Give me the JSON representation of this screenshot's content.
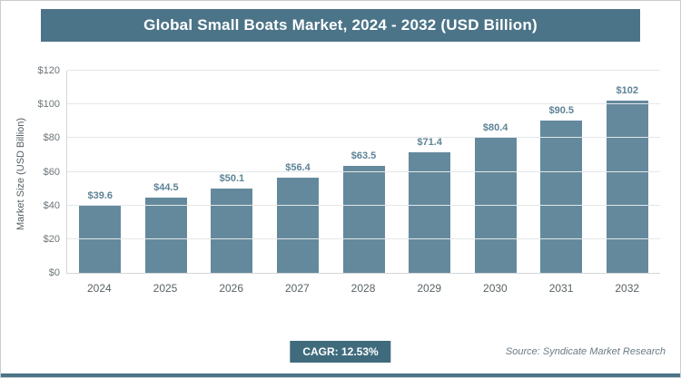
{
  "header": {
    "title": "Global Small Boats Market, 2024 - 2032 (USD Billion)"
  },
  "chart_data": {
    "type": "bar",
    "title": "Global Small Boats Market, 2024 - 2032 (USD Billion)",
    "categories": [
      "2024",
      "2025",
      "2026",
      "2027",
      "2028",
      "2029",
      "2030",
      "2031",
      "2032"
    ],
    "values": [
      39.6,
      44.5,
      50.1,
      56.4,
      63.5,
      71.4,
      80.4,
      90.5,
      102
    ],
    "value_labels": [
      "$39.6",
      "$44.5",
      "$50.1",
      "$56.4",
      "$63.5",
      "$71.4",
      "$80.4",
      "$90.5",
      "$102"
    ],
    "xlabel": "",
    "ylabel": "Market Size (USD Billion)",
    "ylim": [
      0,
      120
    ],
    "yticks": [
      0,
      20,
      40,
      60,
      80,
      100,
      120
    ],
    "ytick_labels": [
      "$0",
      "$20",
      "$40",
      "$60",
      "$80",
      "$100",
      "$120"
    ],
    "grid": true,
    "legend": false,
    "bar_color": "#64899c"
  },
  "footer": {
    "cagr_label": "CAGR: 12.53%",
    "source": "Source: Syndicate Market Research"
  },
  "colors": {
    "title_bg": "#4c7488",
    "bar": "#64899c",
    "badge_bg": "#3f6b7d",
    "accent_bar": "#4c7488"
  }
}
